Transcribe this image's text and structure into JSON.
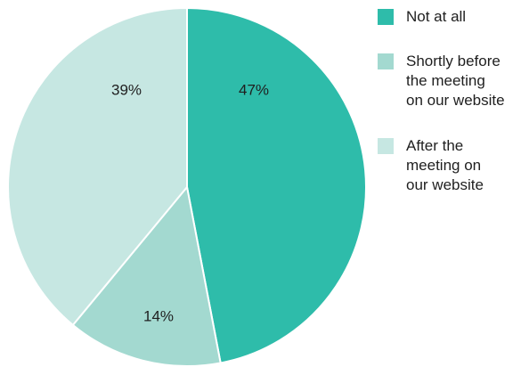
{
  "chart_data": {
    "type": "pie",
    "title": "",
    "slices": [
      {
        "label": "Not at all",
        "value": 47,
        "display": "47%",
        "color": "#2ebcaa"
      },
      {
        "label": "Shortly before the meeting on our website",
        "value": 14,
        "display": "14%",
        "color": "#a3d9d0"
      },
      {
        "label": "After the meeting on our website",
        "value": 39,
        "display": "39%",
        "color": "#c6e7e2"
      }
    ],
    "legend_position": "right",
    "start_angle": "12 o'clock",
    "direction": "clockwise"
  },
  "legend": {
    "items": [
      {
        "label_lines": [
          "Not at all"
        ],
        "color": "#2ebcaa"
      },
      {
        "label_lines": [
          "Shortly before",
          "the meeting",
          "on our website"
        ],
        "color": "#a3d9d0"
      },
      {
        "label_lines": [
          "After the",
          "meeting on",
          "our website"
        ],
        "color": "#c6e7e2"
      }
    ]
  }
}
